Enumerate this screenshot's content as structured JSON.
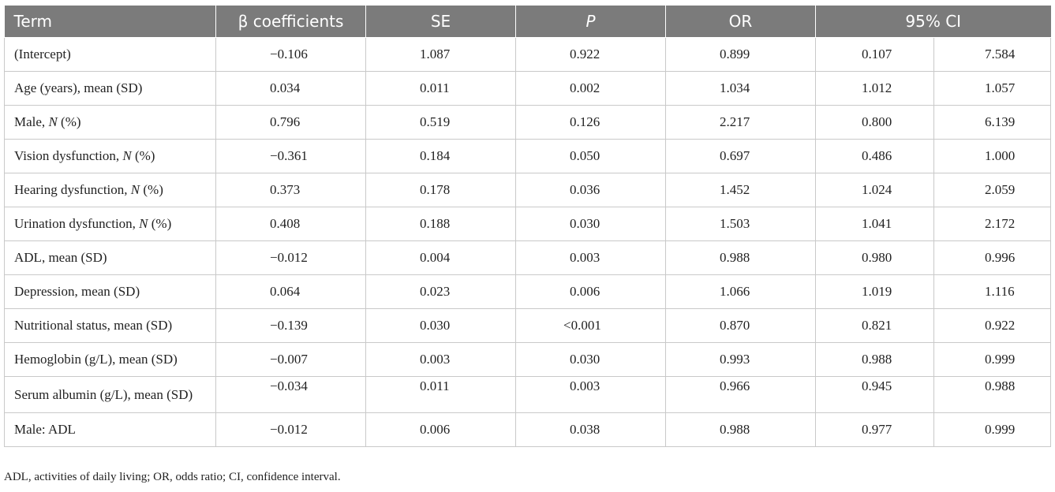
{
  "table": {
    "headers": [
      "Term",
      "β coefficients",
      "SE",
      "P",
      "OR",
      "95% CI"
    ],
    "rows": [
      {
        "term": "(Intercept)",
        "term_italic": "",
        "term_suffix": "",
        "beta": "−0.106",
        "se": "1.087",
        "p": "0.922",
        "or": "0.899",
        "ci_low": "0.107",
        "ci_high": "7.584"
      },
      {
        "term": "Age (years), mean (SD)",
        "term_italic": "",
        "term_suffix": "",
        "beta": "0.034",
        "se": "0.011",
        "p": "0.002",
        "or": "1.034",
        "ci_low": "1.012",
        "ci_high": "1.057"
      },
      {
        "term": "Male, ",
        "term_italic": "N",
        "term_suffix": " (%)",
        "beta": "0.796",
        "se": "0.519",
        "p": "0.126",
        "or": "2.217",
        "ci_low": "0.800",
        "ci_high": "6.139"
      },
      {
        "term": "Vision dysfunction, ",
        "term_italic": "N",
        "term_suffix": " (%)",
        "beta": "−0.361",
        "se": "0.184",
        "p": "0.050",
        "or": "0.697",
        "ci_low": "0.486",
        "ci_high": "1.000"
      },
      {
        "term": "Hearing dysfunction, ",
        "term_italic": "N",
        "term_suffix": " (%)",
        "beta": "0.373",
        "se": "0.178",
        "p": "0.036",
        "or": "1.452",
        "ci_low": "1.024",
        "ci_high": "2.059"
      },
      {
        "term": "Urination dysfunction, ",
        "term_italic": "N",
        "term_suffix": " (%)",
        "beta": "0.408",
        "se": "0.188",
        "p": "0.030",
        "or": "1.503",
        "ci_low": "1.041",
        "ci_high": "2.172"
      },
      {
        "term": "ADL, mean (SD)",
        "term_italic": "",
        "term_suffix": "",
        "beta": "−0.012",
        "se": "0.004",
        "p": "0.003",
        "or": "0.988",
        "ci_low": "0.980",
        "ci_high": "0.996"
      },
      {
        "term": "Depression, mean (SD)",
        "term_italic": "",
        "term_suffix": "",
        "beta": "0.064",
        "se": "0.023",
        "p": "0.006",
        "or": "1.066",
        "ci_low": "1.019",
        "ci_high": "1.116"
      },
      {
        "term": "Nutritional status, mean (SD)",
        "term_italic": "",
        "term_suffix": "",
        "beta": "−0.139",
        "se": "0.030",
        "p": "<0.001",
        "or": "0.870",
        "ci_low": "0.821",
        "ci_high": "0.922"
      },
      {
        "term": "Hemoglobin (g/L), mean (SD)",
        "term_italic": "",
        "term_suffix": "",
        "beta": "−0.007",
        "se": "0.003",
        "p": "0.030",
        "or": "0.993",
        "ci_low": "0.988",
        "ci_high": "0.999"
      },
      {
        "term": "Serum albumin (g/L), mean (SD)",
        "term_italic": "",
        "term_suffix": "",
        "beta": "−0.034",
        "se": "0.011",
        "p": "0.003",
        "or": "0.966",
        "ci_low": "0.945",
        "ci_high": "0.988"
      },
      {
        "term": "Male: ADL",
        "term_italic": "",
        "term_suffix": "",
        "beta": "−0.012",
        "se": "0.006",
        "p": "0.038",
        "or": "0.988",
        "ci_low": "0.977",
        "ci_high": "0.999"
      }
    ]
  },
  "footnote": "ADL, activities of daily living; OR, odds ratio; CI, confidence interval."
}
